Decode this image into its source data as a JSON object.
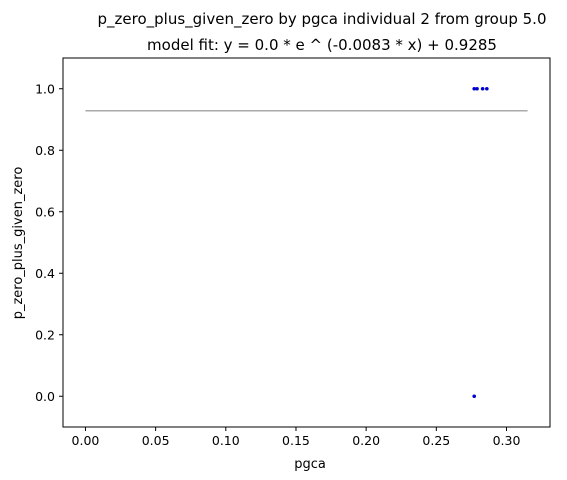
{
  "chart_data": {
    "type": "scatter",
    "title": "p_zero_plus_given_zero by pgca individual 2 from group 5.0",
    "subtitle": "model fit: y = 0.0 * e ^ (-0.0083 * x) + 0.9285",
    "xlabel": "pgca",
    "ylabel": "p_zero_plus_given_zero",
    "xlim": [
      -0.016,
      0.331
    ],
    "ylim": [
      -0.1,
      1.1
    ],
    "xticks": [
      "0.00",
      "0.05",
      "0.10",
      "0.15",
      "0.20",
      "0.25",
      "0.30"
    ],
    "xtick_values": [
      0.0,
      0.05,
      0.1,
      0.15,
      0.2,
      0.25,
      0.3
    ],
    "yticks": [
      "0.0",
      "0.2",
      "0.4",
      "0.6",
      "0.8",
      "1.0"
    ],
    "ytick_values": [
      0.0,
      0.2,
      0.4,
      0.6,
      0.8,
      1.0
    ],
    "grid": false,
    "points": [
      {
        "x": 0.277,
        "y": 1.0
      },
      {
        "x": 0.279,
        "y": 1.0
      },
      {
        "x": 0.283,
        "y": 1.0
      },
      {
        "x": 0.286,
        "y": 1.0
      },
      {
        "x": 0.277,
        "y": 0.0
      }
    ],
    "fit_line": {
      "x": [
        0.0,
        0.315
      ],
      "y": [
        0.9285,
        0.9285
      ]
    },
    "colors": {
      "points": "#0000cc",
      "fit_line": "#aaaaaa"
    }
  }
}
